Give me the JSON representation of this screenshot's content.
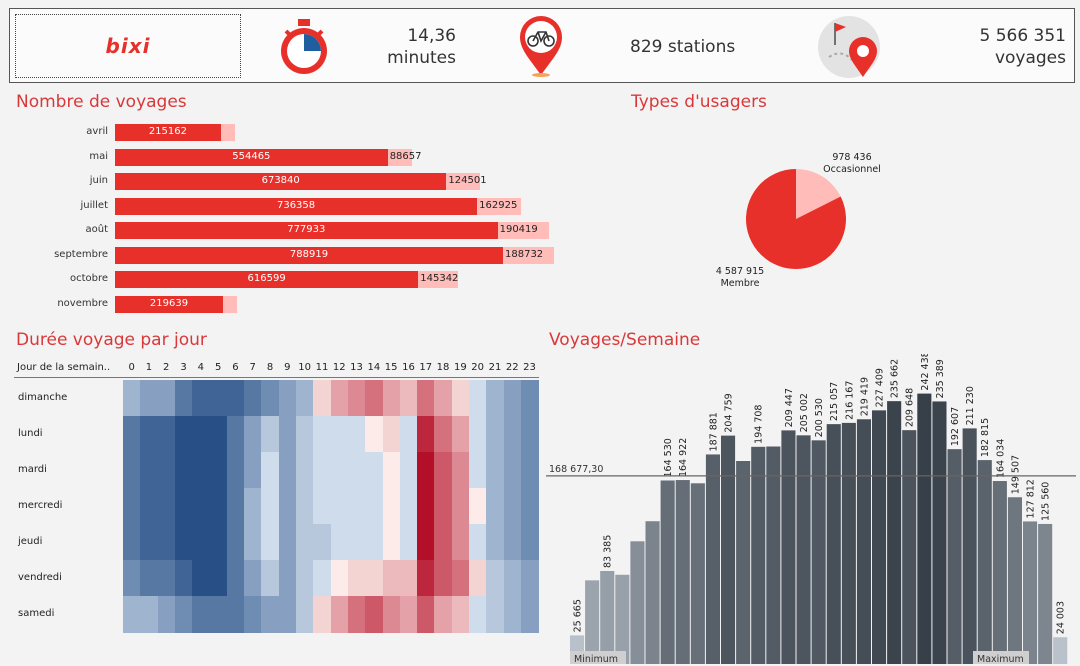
{
  "kpis": {
    "logo": "bixi",
    "duration_value": "14,36",
    "duration_unit": "minutes",
    "stations": "829 stations",
    "trips_value": "5 566 351",
    "trips_unit": "voyages",
    "timer_icon": "stopwatch-icon",
    "bike_icon": "bike-pin-icon",
    "map_icon": "map-pin-icon"
  },
  "colors": {
    "accent": "#e8302a",
    "light_red": "#ffbcb8",
    "title_red": "#d9383a"
  },
  "chart_data": [
    {
      "type": "bar",
      "title": "Nombre de voyages",
      "stacked": true,
      "orientation": "horizontal",
      "categories": [
        "avril",
        "mai",
        "juin",
        "juillet",
        "août",
        "septembre",
        "octobre",
        "novembre"
      ],
      "series": [
        {
          "values": [
            215162,
            554465,
            673840,
            736358,
            777933,
            788919,
            616599,
            219639
          ]
        },
        {
          "values": [
            null,
            88657,
            124501,
            162925,
            190419,
            188732,
            145342,
            null
          ]
        }
      ]
    },
    {
      "type": "pie",
      "title": "Types d'usagers",
      "slices": [
        {
          "label": "Occasionnel",
          "value": 978436,
          "value_text": "978 436"
        },
        {
          "label": "Membre",
          "value": 4587915,
          "value_text": "4 587 915"
        }
      ]
    },
    {
      "type": "heatmap",
      "title": "Durée voyage par jour",
      "corner_label": "Jour de la semain..",
      "columns": [
        "0",
        "1",
        "2",
        "3",
        "4",
        "5",
        "6",
        "7",
        "8",
        "9",
        "10",
        "11",
        "12",
        "13",
        "14",
        "15",
        "16",
        "17",
        "18",
        "19",
        "20",
        "21",
        "22",
        "23"
      ],
      "rows": [
        "dimanche",
        "lundi",
        "mardi",
        "mercredi",
        "jeudi",
        "vendredi",
        "samedi"
      ],
      "values": [
        [
          -3,
          -4,
          -4,
          -6,
          -7,
          -7,
          -7,
          -6,
          -5,
          -4,
          -3,
          1,
          3,
          4,
          5,
          3,
          2,
          5,
          3,
          1,
          -1,
          -3,
          -4,
          -5
        ],
        [
          -6,
          -7,
          -7,
          -8,
          -8,
          -8,
          -6,
          -4,
          -2,
          -4,
          -2,
          -1,
          -1,
          -1,
          0,
          1,
          -1,
          8,
          5,
          3,
          -1,
          -3,
          -4,
          -5
        ],
        [
          -6,
          -7,
          -7,
          -8,
          -8,
          -8,
          -6,
          -4,
          -1,
          -4,
          -2,
          -1,
          -1,
          -1,
          -1,
          0,
          -1,
          9,
          6,
          4,
          -1,
          -3,
          -4,
          -5
        ],
        [
          -6,
          -7,
          -7,
          -8,
          -8,
          -8,
          -6,
          -3,
          -1,
          -4,
          -2,
          -1,
          -1,
          -1,
          -1,
          0,
          -1,
          9,
          6,
          4,
          0,
          -3,
          -4,
          -5
        ],
        [
          -6,
          -7,
          -7,
          -8,
          -8,
          -8,
          -6,
          -3,
          -1,
          -4,
          -2,
          -2,
          -1,
          -1,
          -1,
          0,
          -1,
          9,
          6,
          4,
          -1,
          -3,
          -4,
          -5
        ],
        [
          -5,
          -6,
          -6,
          -7,
          -8,
          -8,
          -6,
          -4,
          -2,
          -4,
          -2,
          -1,
          0,
          1,
          1,
          2,
          2,
          8,
          6,
          5,
          1,
          -2,
          -3,
          -4
        ],
        [
          -3,
          -3,
          -4,
          -5,
          -6,
          -6,
          -6,
          -5,
          -4,
          -4,
          -2,
          1,
          3,
          5,
          6,
          4,
          3,
          6,
          3,
          2,
          -1,
          -2,
          -3,
          -4
        ]
      ]
    },
    {
      "type": "bar",
      "title": "Voyages/Semaine",
      "reference_line": {
        "value": 168677.3,
        "label": "168 677,30"
      },
      "min_label": "Minimum",
      "max_label": "Maximum",
      "values": [
        25665,
        75000,
        83385,
        80000,
        110000,
        128000,
        164530,
        164922,
        162000,
        187881,
        204759,
        182000,
        194708,
        195000,
        209447,
        205002,
        200530,
        215057,
        216167,
        219419,
        227409,
        235662,
        209648,
        242438,
        235389,
        192607,
        211230,
        182815,
        164034,
        149507,
        127812,
        125560,
        24003
      ],
      "labels": [
        "25 665",
        "",
        "83 385",
        "",
        "",
        "",
        "164 530",
        "164 922",
        "",
        "187 881",
        "204 759",
        "",
        "194 708",
        "",
        "209 447",
        "205 002",
        "200 530",
        "215 057",
        "216 167",
        "219 419",
        "227 409",
        "235 662",
        "209 648",
        "242 438",
        "235 389",
        "192 607",
        "211 230",
        "182 815",
        "164 034",
        "149 507",
        "127 812",
        "125 560",
        "24 003"
      ]
    }
  ]
}
